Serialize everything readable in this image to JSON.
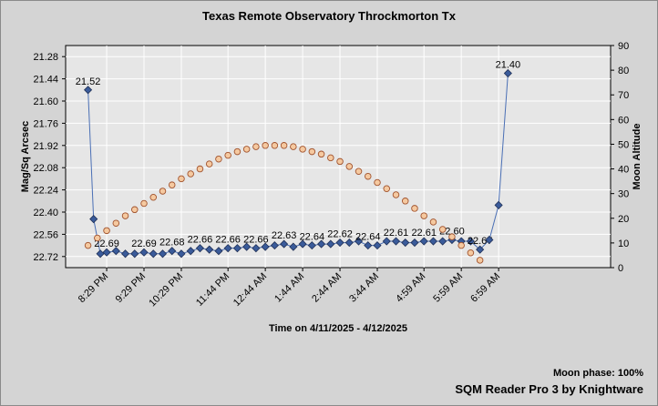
{
  "chart_data": {
    "type": "line",
    "title": "Texas Remote Observatory   Throckmorton Tx",
    "xlabel": "Time on 4/11/2025 - 4/12/2025",
    "ylabel_left": "Mag/Sq Arcsec",
    "ylabel_right": "Moon Altitude",
    "y_left": {
      "min": 22.8,
      "max": 21.2,
      "inverted": true,
      "ticks": [
        "21.28",
        "21.44",
        "21.60",
        "21.76",
        "21.92",
        "22.08",
        "22.24",
        "22.40",
        "22.56",
        "22.72"
      ],
      "tick_values": [
        21.28,
        21.44,
        21.6,
        21.76,
        21.92,
        22.08,
        22.24,
        22.4,
        22.56,
        22.72
      ]
    },
    "y_right": {
      "min": 0,
      "max": 90,
      "ticks": [
        "0",
        "10",
        "20",
        "30",
        "40",
        "50",
        "60",
        "70",
        "80",
        "90"
      ],
      "tick_values": [
        0,
        10,
        20,
        30,
        40,
        50,
        60,
        70,
        80,
        90
      ]
    },
    "x_ticks": [
      {
        "label": "8:29 PM",
        "t": 0.5
      },
      {
        "label": "9:29 PM",
        "t": 1.5
      },
      {
        "label": "10:29 PM",
        "t": 2.5
      },
      {
        "label": "11:44 PM",
        "t": 3.75
      },
      {
        "label": "12:44 AM",
        "t": 4.75
      },
      {
        "label": "1:44 AM",
        "t": 5.75
      },
      {
        "label": "2:44 AM",
        "t": 6.75
      },
      {
        "label": "3:44 AM",
        "t": 7.75
      },
      {
        "label": "4:59 AM",
        "t": 9.0
      },
      {
        "label": "5:59 AM",
        "t": 10.0
      },
      {
        "label": "6:59 AM",
        "t": 11.0
      }
    ],
    "x_range": [
      -0.6,
      14.0
    ],
    "grid": true,
    "series": [
      {
        "name": "",
        "axis": "left",
        "color": "#3a5b9a",
        "marker": "diamond",
        "points": [
          {
            "t": 0.0,
            "v": 21.52,
            "label": "21.52"
          },
          {
            "t": 0.15,
            "v": 22.45
          },
          {
            "t": 0.33,
            "v": 22.7
          },
          {
            "t": 0.5,
            "v": 22.69,
            "label": "22.69"
          },
          {
            "t": 0.75,
            "v": 22.68
          },
          {
            "t": 1.0,
            "v": 22.7
          },
          {
            "t": 1.25,
            "v": 22.7
          },
          {
            "t": 1.5,
            "v": 22.69,
            "label": "22.69"
          },
          {
            "t": 1.75,
            "v": 22.7
          },
          {
            "t": 2.0,
            "v": 22.7
          },
          {
            "t": 2.25,
            "v": 22.68,
            "label": "22.68"
          },
          {
            "t": 2.5,
            "v": 22.7
          },
          {
            "t": 2.75,
            "v": 22.68
          },
          {
            "t": 3.0,
            "v": 22.66,
            "label": "22.66"
          },
          {
            "t": 3.25,
            "v": 22.67
          },
          {
            "t": 3.5,
            "v": 22.68
          },
          {
            "t": 3.75,
            "v": 22.66,
            "label": "22.66"
          },
          {
            "t": 4.0,
            "v": 22.66
          },
          {
            "t": 4.25,
            "v": 22.65
          },
          {
            "t": 4.5,
            "v": 22.66,
            "label": "22.66"
          },
          {
            "t": 4.75,
            "v": 22.65
          },
          {
            "t": 5.0,
            "v": 22.64
          },
          {
            "t": 5.25,
            "v": 22.63,
            "label": "22.63"
          },
          {
            "t": 5.5,
            "v": 22.65
          },
          {
            "t": 5.75,
            "v": 22.63
          },
          {
            "t": 6.0,
            "v": 22.64,
            "label": "22.64"
          },
          {
            "t": 6.25,
            "v": 22.63
          },
          {
            "t": 6.5,
            "v": 22.63
          },
          {
            "t": 6.75,
            "v": 22.62,
            "label": "22.62"
          },
          {
            "t": 7.0,
            "v": 22.62
          },
          {
            "t": 7.25,
            "v": 22.61
          },
          {
            "t": 7.5,
            "v": 22.64,
            "label": "22.64"
          },
          {
            "t": 7.75,
            "v": 22.64
          },
          {
            "t": 8.0,
            "v": 22.61
          },
          {
            "t": 8.25,
            "v": 22.61,
            "label": "22.61"
          },
          {
            "t": 8.5,
            "v": 22.62
          },
          {
            "t": 8.75,
            "v": 22.62
          },
          {
            "t": 9.0,
            "v": 22.61,
            "label": "22.61"
          },
          {
            "t": 9.25,
            "v": 22.61
          },
          {
            "t": 9.5,
            "v": 22.61
          },
          {
            "t": 9.75,
            "v": 22.6,
            "label": "22.60"
          },
          {
            "t": 10.0,
            "v": 22.61
          },
          {
            "t": 10.25,
            "v": 22.61
          },
          {
            "t": 10.5,
            "v": 22.67,
            "label": "22.67"
          },
          {
            "t": 10.75,
            "v": 22.6
          },
          {
            "t": 11.0,
            "v": 22.35
          },
          {
            "t": 11.25,
            "v": 21.4,
            "label": "21.40"
          }
        ]
      },
      {
        "name": "",
        "axis": "right",
        "color": "#f5c9a0",
        "marker": "circle",
        "points": [
          {
            "t": 0.0,
            "v": 9
          },
          {
            "t": 0.25,
            "v": 12
          },
          {
            "t": 0.5,
            "v": 15
          },
          {
            "t": 0.75,
            "v": 18
          },
          {
            "t": 1.0,
            "v": 21
          },
          {
            "t": 1.25,
            "v": 23.5
          },
          {
            "t": 1.5,
            "v": 26
          },
          {
            "t": 1.75,
            "v": 28.5
          },
          {
            "t": 2.0,
            "v": 31
          },
          {
            "t": 2.25,
            "v": 33.5
          },
          {
            "t": 2.5,
            "v": 36
          },
          {
            "t": 2.75,
            "v": 38
          },
          {
            "t": 3.0,
            "v": 40
          },
          {
            "t": 3.25,
            "v": 42
          },
          {
            "t": 3.5,
            "v": 44
          },
          {
            "t": 3.75,
            "v": 45.5
          },
          {
            "t": 4.0,
            "v": 47
          },
          {
            "t": 4.25,
            "v": 48
          },
          {
            "t": 4.5,
            "v": 49
          },
          {
            "t": 4.75,
            "v": 49.5
          },
          {
            "t": 5.0,
            "v": 49.5
          },
          {
            "t": 5.25,
            "v": 49.5
          },
          {
            "t": 5.5,
            "v": 49
          },
          {
            "t": 5.75,
            "v": 48
          },
          {
            "t": 6.0,
            "v": 47
          },
          {
            "t": 6.25,
            "v": 46
          },
          {
            "t": 6.5,
            "v": 44.5
          },
          {
            "t": 6.75,
            "v": 43
          },
          {
            "t": 7.0,
            "v": 41
          },
          {
            "t": 7.25,
            "v": 39
          },
          {
            "t": 7.5,
            "v": 37
          },
          {
            "t": 7.75,
            "v": 34.5
          },
          {
            "t": 8.0,
            "v": 32
          },
          {
            "t": 8.25,
            "v": 29.5
          },
          {
            "t": 8.5,
            "v": 27
          },
          {
            "t": 8.75,
            "v": 24
          },
          {
            "t": 9.0,
            "v": 21
          },
          {
            "t": 9.25,
            "v": 18.5
          },
          {
            "t": 9.5,
            "v": 15.5
          },
          {
            "t": 9.75,
            "v": 12.5
          },
          {
            "t": 10.0,
            "v": 9
          },
          {
            "t": 10.25,
            "v": 6
          },
          {
            "t": 10.5,
            "v": 3
          }
        ]
      }
    ]
  },
  "footer": {
    "moon_phase": "Moon phase: 100%",
    "software": "SQM Reader Pro 3 by Knightware"
  }
}
